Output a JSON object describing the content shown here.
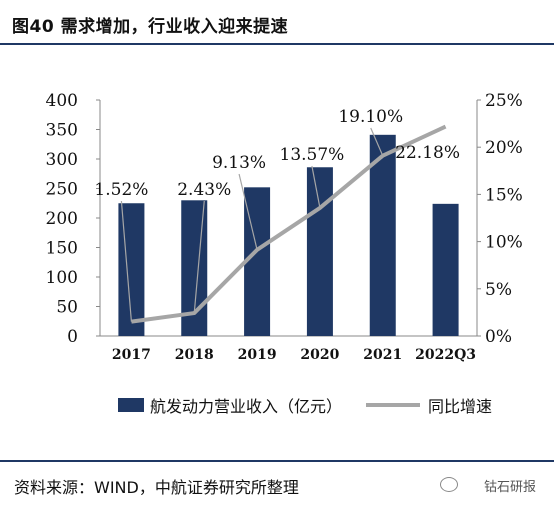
{
  "figure": {
    "title": "图40  需求增加，行业收入迎来提速",
    "source": "资料来源：WIND，中航证券研究所整理",
    "watermark": "钴石研报"
  },
  "colors": {
    "bar": "#1f3864",
    "line": "#a6a6a6",
    "axis": "#888888"
  },
  "chart_data": {
    "type": "bar+line",
    "categories": [
      "2017",
      "2018",
      "2019",
      "2020",
      "2021",
      "2022Q3"
    ],
    "series": [
      {
        "name": "航发动力营业收入（亿元）",
        "type": "bar",
        "axis": "left",
        "values": [
          225,
          230,
          252,
          286,
          341,
          224
        ]
      },
      {
        "name": "同比增速",
        "type": "line",
        "axis": "right",
        "values": [
          1.52,
          2.43,
          9.13,
          13.57,
          19.1,
          22.18
        ],
        "labels": [
          "1.52%",
          "2.43%",
          "9.13%",
          "13.57%",
          "19.10%",
          "22.18%"
        ]
      }
    ],
    "y_left": {
      "min": 0,
      "max": 400,
      "ticks": [
        "0",
        "50",
        "100",
        "150",
        "200",
        "250",
        "300",
        "350",
        "400"
      ]
    },
    "y_right": {
      "min": 0,
      "max": 25,
      "ticks": [
        "0%",
        "5%",
        "10%",
        "15%",
        "20%",
        "25%"
      ]
    },
    "legend_position": "bottom",
    "grid": false
  }
}
